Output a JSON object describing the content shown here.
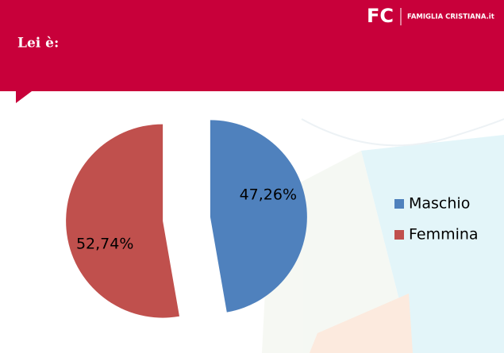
{
  "brand": {
    "logo": "FC",
    "name": "FAMIGLIA CRISTIANA.it"
  },
  "chart_data": {
    "type": "pie",
    "title": "Lei è:",
    "categories": [
      "Maschio",
      "Femmina"
    ],
    "values": [
      47.26,
      52.74
    ],
    "value_labels": [
      "47,26%",
      "52,74%"
    ],
    "colors": [
      "#4f81bd",
      "#c0504d"
    ],
    "legend": "right"
  }
}
